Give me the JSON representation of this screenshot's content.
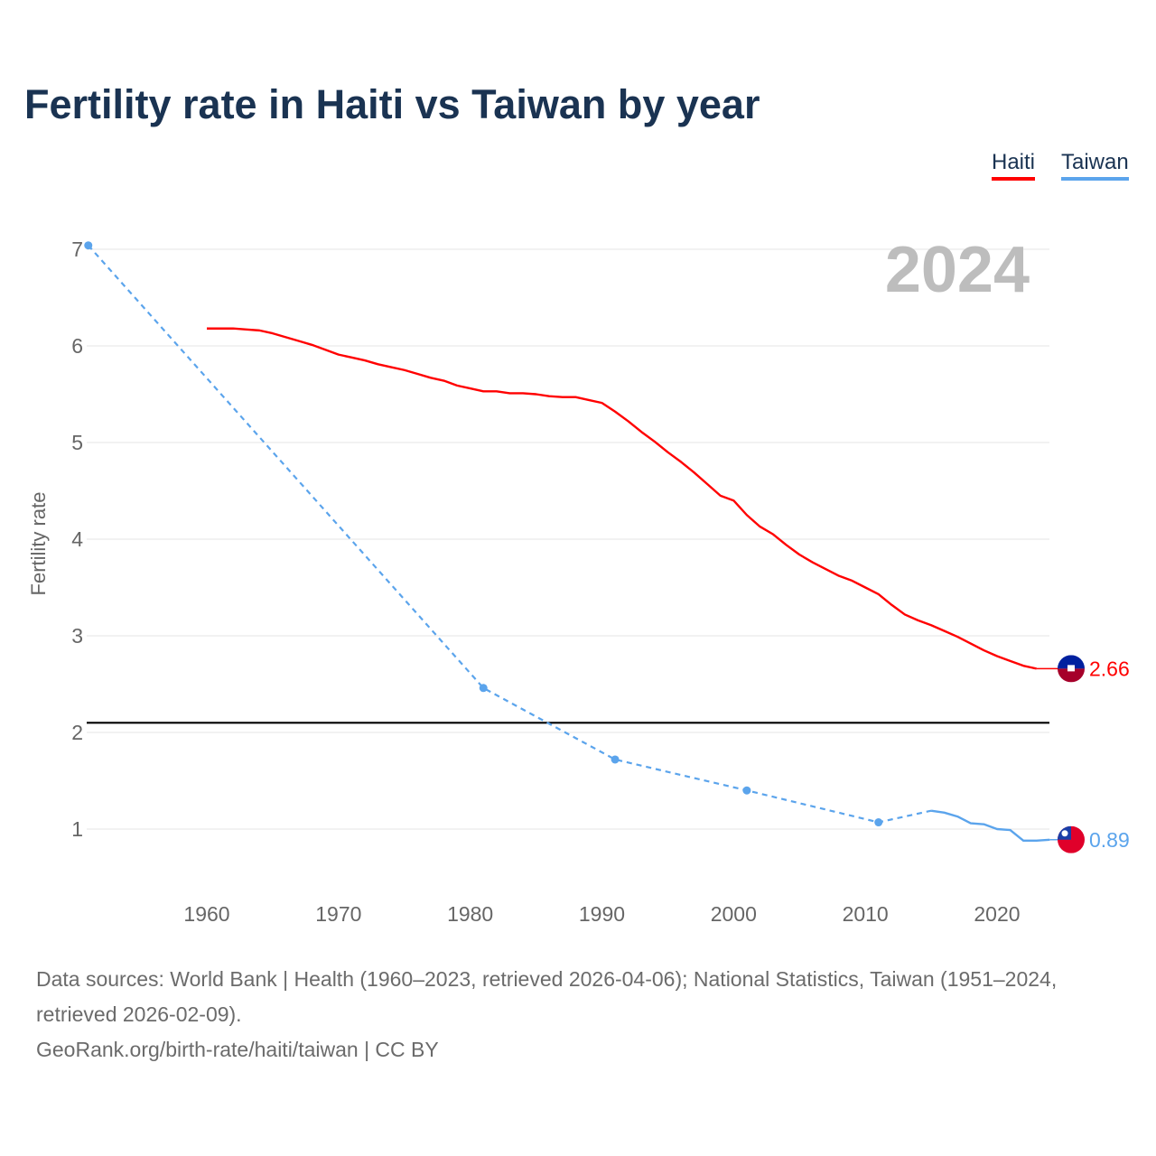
{
  "title": "Fertility rate in Haiti vs Taiwan by year",
  "chart_data": {
    "type": "line",
    "title": "Fertility rate in Haiti vs Taiwan by year",
    "xlabel": "",
    "ylabel": "Fertility rate",
    "xlim": [
      1951,
      2024
    ],
    "ylim": [
      0.5,
      7.2
    ],
    "x_ticks": [
      "1960",
      "1970",
      "1980",
      "1990",
      "2000",
      "2010",
      "2020"
    ],
    "y_ticks": [
      "1",
      "2",
      "3",
      "4",
      "5",
      "6",
      "7"
    ],
    "grid": true,
    "legend_placement": "top-right",
    "year_label": "2024",
    "reference_line": {
      "value": 2.1,
      "color": "#000000"
    },
    "series": [
      {
        "name": "Haiti",
        "color": "#ff0000",
        "end_label": "2.66",
        "x": [
          1960,
          1961,
          1962,
          1963,
          1964,
          1965,
          1966,
          1967,
          1968,
          1969,
          1970,
          1971,
          1972,
          1973,
          1974,
          1975,
          1976,
          1977,
          1978,
          1979,
          1980,
          1981,
          1982,
          1983,
          1984,
          1985,
          1986,
          1987,
          1988,
          1989,
          1990,
          1991,
          1992,
          1993,
          1994,
          1995,
          1996,
          1997,
          1998,
          1999,
          2000,
          2001,
          2002,
          2003,
          2004,
          2005,
          2006,
          2007,
          2008,
          2009,
          2010,
          2011,
          2012,
          2013,
          2014,
          2015,
          2016,
          2017,
          2018,
          2019,
          2020,
          2021,
          2022,
          2023
        ],
        "values": [
          6.18,
          6.18,
          6.18,
          6.17,
          6.16,
          6.13,
          6.09,
          6.05,
          6.01,
          5.96,
          5.91,
          5.88,
          5.85,
          5.81,
          5.78,
          5.75,
          5.71,
          5.67,
          5.64,
          5.59,
          5.56,
          5.53,
          5.53,
          5.51,
          5.51,
          5.5,
          5.48,
          5.47,
          5.47,
          5.44,
          5.41,
          5.32,
          5.22,
          5.11,
          5.01,
          4.9,
          4.8,
          4.69,
          4.57,
          4.45,
          4.4,
          4.25,
          4.13,
          4.05,
          3.94,
          3.84,
          3.76,
          3.69,
          3.62,
          3.57,
          3.5,
          3.43,
          3.32,
          3.22,
          3.16,
          3.11,
          3.05,
          2.99,
          2.92,
          2.85,
          2.79,
          2.74,
          2.69,
          2.66
        ]
      },
      {
        "name": "Taiwan",
        "color": "#5ba4ec",
        "end_label": "0.89",
        "sparse_points": {
          "x": [
            1951,
            1981,
            1991,
            2001,
            2011,
            2015
          ],
          "values": [
            7.04,
            2.46,
            1.72,
            1.4,
            1.07,
            1.19
          ]
        },
        "x": [
          2015,
          2016,
          2017,
          2018,
          2019,
          2020,
          2021,
          2022,
          2023,
          2024
        ],
        "values": [
          1.19,
          1.17,
          1.13,
          1.06,
          1.05,
          1.0,
          0.99,
          0.88,
          0.88,
          0.89
        ]
      }
    ]
  },
  "legend": {
    "haiti": "Haiti",
    "taiwan": "Taiwan"
  },
  "footer": {
    "sources": "Data sources: World Bank | Health (1960–2023, retrieved 2026-04-06); National Statistics, Taiwan (1951–2024, retrieved 2026-02-09).",
    "credit": "GeoRank.org/birth-rate/haiti/taiwan | CC BY"
  }
}
